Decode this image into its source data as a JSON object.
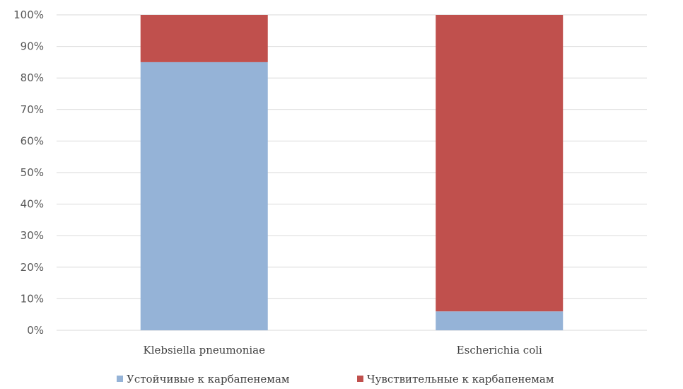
{
  "chart_data": {
    "type": "bar",
    "stacked": true,
    "percent_stacked": true,
    "categories": [
      "Klebsiella pneumoniae",
      "Escherichia coli"
    ],
    "series": [
      {
        "name": "Устойчивые к карбапенемам",
        "color": "#95B3D7",
        "values": [
          85,
          6
        ]
      },
      {
        "name": "Чувствительные к карбапенемам",
        "color": "#C0504D",
        "values": [
          15,
          94
        ]
      }
    ],
    "y_ticks": [
      "0%",
      "10%",
      "20%",
      "30%",
      "40%",
      "50%",
      "60%",
      "70%",
      "80%",
      "90%",
      "100%"
    ],
    "ylim": [
      0,
      100
    ],
    "grid": true,
    "legend_position": "bottom"
  }
}
